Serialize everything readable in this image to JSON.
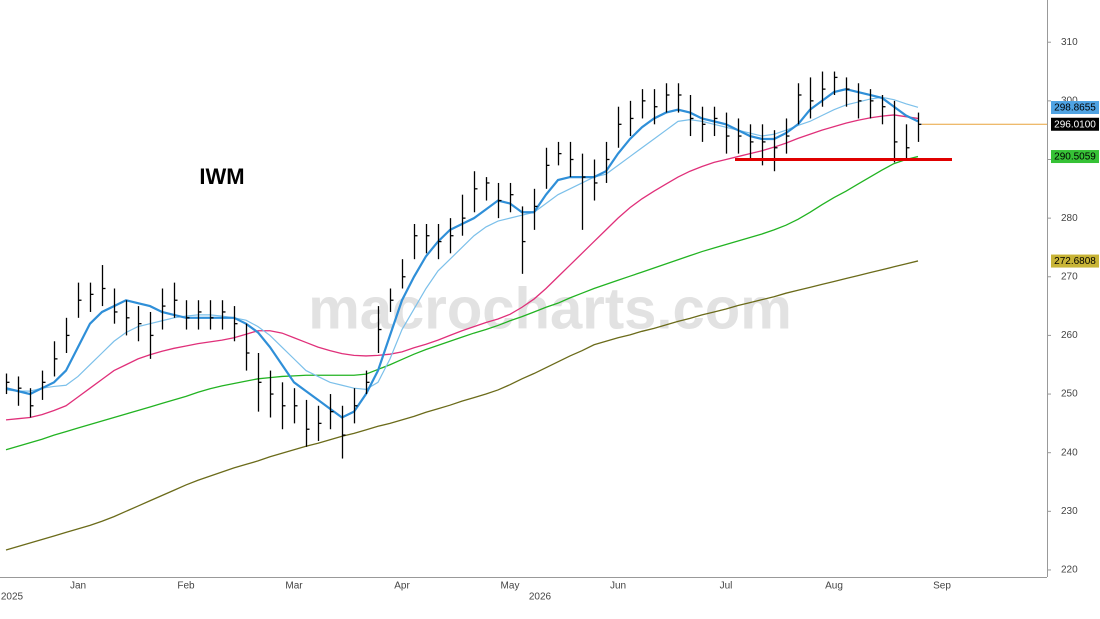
{
  "chart_data": {
    "type": "ohlc",
    "annotation": "IWM",
    "watermark": "macrocharts.com",
    "categories": [
      null,
      null,
      null,
      null,
      null,
      null,
      "Jan",
      null,
      null,
      null,
      null,
      null,
      null,
      null,
      null,
      "Feb",
      null,
      null,
      null,
      null,
      null,
      null,
      null,
      null,
      "Mar",
      null,
      null,
      null,
      null,
      null,
      null,
      null,
      null,
      "Apr",
      null,
      null,
      null,
      null,
      null,
      null,
      null,
      null,
      "May",
      null,
      null,
      null,
      null,
      null,
      null,
      null,
      null,
      "Jun",
      null,
      null,
      null,
      null,
      null,
      null,
      null,
      null,
      "Jul",
      null,
      null,
      null,
      null,
      null,
      null,
      null,
      null,
      "Aug",
      null,
      null,
      null,
      null,
      null,
      null,
      null,
      null,
      "Sep",
      null,
      null,
      null,
      null,
      null,
      null,
      null,
      null
    ],
    "year_labels": [
      "2025",
      null,
      null,
      null,
      null,
      null,
      null,
      null,
      null,
      null,
      null,
      null,
      null,
      null,
      null,
      null,
      null,
      null,
      null,
      null,
      null,
      null,
      null,
      null,
      null,
      null,
      null,
      null,
      null,
      null,
      null,
      null,
      null,
      null,
      null,
      null,
      null,
      null,
      null,
      null,
      null,
      null,
      null,
      null,
      "2026",
      null,
      null,
      null,
      null,
      null,
      null,
      null,
      null,
      null,
      null,
      null,
      null,
      null,
      null,
      null,
      null,
      null,
      null,
      null,
      null,
      null,
      null,
      null,
      null,
      null,
      null,
      null,
      null,
      null,
      null,
      null,
      null,
      null,
      null,
      null,
      null,
      null,
      null,
      null,
      null,
      null,
      null
    ],
    "bar_color": "#000000",
    "high": [
      253.5,
      253,
      251,
      254,
      259,
      263,
      269,
      269,
      272,
      268,
      266,
      265,
      264,
      268,
      269,
      266,
      266,
      266,
      266,
      265,
      262,
      257,
      254,
      252,
      251,
      249,
      248,
      250,
      248,
      251,
      254,
      265,
      268,
      273,
      279,
      279,
      279,
      280,
      284,
      288,
      287,
      286,
      286,
      282,
      285,
      292,
      293,
      293,
      291,
      290,
      293,
      299,
      300,
      302,
      302,
      303,
      303,
      301,
      299,
      299,
      298,
      297,
      296,
      296,
      295,
      297,
      303,
      304,
      305,
      305,
      304,
      303,
      302,
      301,
      300,
      296,
      298,
      null,
      null,
      null,
      null,
      null,
      null,
      null,
      null,
      null,
      null
    ],
    "low": [
      250,
      248,
      246,
      249,
      253,
      257,
      263,
      264,
      265,
      262,
      260,
      259,
      256,
      261,
      263,
      261,
      261,
      261,
      261,
      259,
      254,
      247,
      246,
      244,
      245,
      241,
      242,
      244,
      239,
      245,
      250,
      257,
      264,
      268,
      273,
      274,
      273,
      274,
      277,
      281,
      283,
      280,
      281,
      270.5,
      278,
      285,
      289,
      287,
      278,
      283,
      286,
      292,
      294,
      297,
      296,
      298,
      298,
      294,
      293,
      294,
      291,
      291,
      290,
      289,
      288,
      291,
      296,
      297,
      299,
      301,
      299,
      297,
      297,
      296,
      289.5,
      290,
      293,
      null,
      null,
      null,
      null,
      null,
      null,
      null,
      null,
      null,
      null
    ],
    "close": [
      252,
      251,
      248,
      252,
      256,
      260,
      266,
      267,
      268,
      264,
      263,
      262,
      260,
      265,
      266,
      263,
      264,
      263,
      264,
      262,
      257,
      252,
      250,
      248,
      248,
      244,
      245,
      247,
      243,
      248,
      252,
      261,
      266,
      270,
      277,
      277,
      276,
      277,
      280,
      285,
      286,
      283,
      284,
      276,
      282,
      289,
      291,
      290,
      287,
      286,
      290,
      296,
      297,
      300,
      299,
      301,
      301,
      297,
      296,
      297,
      294,
      294,
      293,
      293,
      292,
      294,
      301,
      300,
      302,
      304,
      302,
      300,
      300,
      299,
      293,
      292,
      296,
      null,
      null,
      null,
      null,
      null,
      null,
      null,
      null,
      null,
      null
    ],
    "lines": [
      {
        "color": "#6b6b1a",
        "width": 1.3,
        "values": [
          223.4,
          224,
          224.6,
          225.2,
          225.8,
          226.4,
          227,
          227.6,
          228.3,
          229.1,
          230,
          230.9,
          231.8,
          232.7,
          233.6,
          234.5,
          235.3,
          236,
          236.7,
          237.4,
          238,
          238.6,
          239.3,
          239.9,
          240.5,
          241.1,
          241.6,
          242.2,
          242.8,
          243.3,
          243.9,
          244.5,
          245,
          245.6,
          246.2,
          246.9,
          247.5,
          248.1,
          248.8,
          249.4,
          250,
          250.7,
          251.6,
          252.6,
          253.5,
          254.5,
          255.5,
          256.5,
          257.4,
          258.4,
          259,
          259.6,
          260.1,
          260.7,
          261.2,
          261.8,
          262.4,
          262.9,
          263.5,
          264,
          264.5,
          265.1,
          265.6,
          266.1,
          266.6,
          267.2,
          267.7,
          268.2,
          268.7,
          269.2,
          269.7,
          270.2,
          270.7,
          271.2,
          271.7,
          272.2,
          272.7,
          null,
          null,
          null,
          null,
          null,
          null,
          null,
          null,
          null,
          null
        ]
      },
      {
        "color": "#22b322",
        "width": 1.3,
        "values": [
          240.5,
          241.1,
          241.7,
          242.3,
          243,
          243.6,
          244.2,
          244.8,
          245.4,
          246,
          246.6,
          247.2,
          247.8,
          248.4,
          249,
          249.6,
          250.3,
          250.9,
          251.4,
          251.8,
          252.2,
          252.6,
          252.8,
          253,
          253.1,
          253.2,
          253.2,
          253.2,
          253.2,
          253.2,
          253.4,
          254.2,
          255,
          255.9,
          256.8,
          257.6,
          258.3,
          259,
          259.7,
          260.4,
          261,
          261.7,
          262.5,
          263.2,
          264,
          264.8,
          265.5,
          266.4,
          267.2,
          268,
          268.7,
          269.4,
          270.1,
          270.8,
          271.5,
          272.2,
          272.9,
          273.6,
          274.3,
          274.9,
          275.5,
          276.1,
          276.7,
          277.3,
          278,
          278.8,
          279.8,
          281,
          282.3,
          283.5,
          284.6,
          285.8,
          287,
          288.2,
          289.3,
          290,
          290.5,
          null,
          null,
          null,
          null,
          null,
          null,
          null,
          null,
          null,
          null
        ]
      },
      {
        "color": "#e0307a",
        "width": 1.3,
        "values": [
          245.6,
          245.8,
          246,
          246.5,
          247.2,
          248,
          249.5,
          251,
          252.5,
          254,
          255,
          256,
          256.7,
          257.3,
          257.8,
          258.2,
          258.6,
          258.9,
          259.2,
          259.6,
          260.2,
          260.8,
          260.8,
          260.4,
          259.6,
          258.8,
          258,
          257.4,
          256.9,
          256.6,
          256.5,
          256.6,
          256.8,
          257.2,
          257.9,
          258.5,
          259.2,
          260,
          260.8,
          261.5,
          262.2,
          262.8,
          263.6,
          264.8,
          266.2,
          268,
          270,
          272,
          274,
          276,
          278,
          280,
          281.8,
          283.3,
          284.6,
          285.8,
          287,
          288,
          288.8,
          289.5,
          290,
          290.5,
          291,
          291.5,
          292.1,
          292.8,
          293.6,
          294.3,
          295,
          295.6,
          296.2,
          296.7,
          297.1,
          297.4,
          297.6,
          297.3,
          297,
          null,
          null,
          null,
          null,
          null,
          null,
          null,
          null,
          null,
          null
        ]
      },
      {
        "color": "#7cc0ea",
        "width": 1.2,
        "values": [
          250.7,
          250.5,
          250.5,
          251,
          251.3,
          251.5,
          253,
          255,
          257,
          259,
          260.5,
          261.5,
          262,
          262.5,
          263,
          263.3,
          263.5,
          263.5,
          263.3,
          263,
          262.6,
          261.5,
          260,
          258,
          256,
          254,
          253,
          252,
          251.5,
          251,
          250.8,
          252,
          256,
          261,
          264.5,
          268,
          271,
          273,
          275,
          277,
          278.5,
          279.5,
          280,
          280.5,
          281,
          282.5,
          284,
          285,
          286,
          287,
          287.5,
          289,
          290.5,
          292,
          293.5,
          295,
          296.5,
          296.8,
          296.5,
          296,
          295.5,
          295,
          294.5,
          294,
          294.3,
          295,
          295.8,
          296.5,
          297.5,
          298.5,
          299.3,
          299.8,
          300.3,
          300.6,
          300.2,
          299.5,
          298.9,
          null,
          null,
          null,
          null,
          null,
          null,
          null,
          null,
          null,
          null
        ]
      },
      {
        "color": "#2f8fd8",
        "width": 2.2,
        "values": [
          251,
          250.5,
          250,
          251,
          252,
          254,
          258,
          262,
          264,
          265,
          266,
          265.5,
          265,
          264,
          263.5,
          263,
          263,
          263,
          263,
          263,
          262,
          260.5,
          258,
          255,
          252,
          250.5,
          249,
          247.5,
          246,
          247,
          250,
          254,
          260,
          266,
          270,
          273.5,
          276,
          278,
          279,
          280,
          281.5,
          283,
          282.5,
          281,
          281,
          284,
          286.5,
          287,
          287,
          287,
          288,
          291,
          293.5,
          295.5,
          297,
          298,
          298.5,
          298,
          297,
          296.5,
          296,
          295,
          294,
          293.5,
          293.5,
          294.5,
          296,
          298.5,
          300,
          301.5,
          302,
          301.5,
          301,
          300.5,
          299,
          297.5,
          296.5,
          null,
          null,
          null,
          null,
          null,
          null,
          null,
          null,
          null,
          null
        ]
      }
    ],
    "support_line": {
      "value": 290,
      "color": "#e00000"
    },
    "price_labels": [
      {
        "value": 298.8655,
        "label": "298.8655",
        "color": "#4fa3e3",
        "text_color": "#000000"
      },
      {
        "value": 296.01,
        "label": "296.0100",
        "color": "#000000",
        "text_color": "#ffffff",
        "line_color": "#e8a33c"
      },
      {
        "value": 290.5059,
        "label": "290.5059",
        "color": "#36c236",
        "text_color": "#000000"
      },
      {
        "value": 272.6808,
        "label": "272.6808",
        "color": "#c8b436",
        "text_color": "#000000"
      }
    ],
    "ylim": [
      218.8,
      317.2
    ],
    "yticks": [
      220,
      230,
      240,
      250,
      260,
      270,
      280,
      290,
      300,
      310
    ]
  }
}
